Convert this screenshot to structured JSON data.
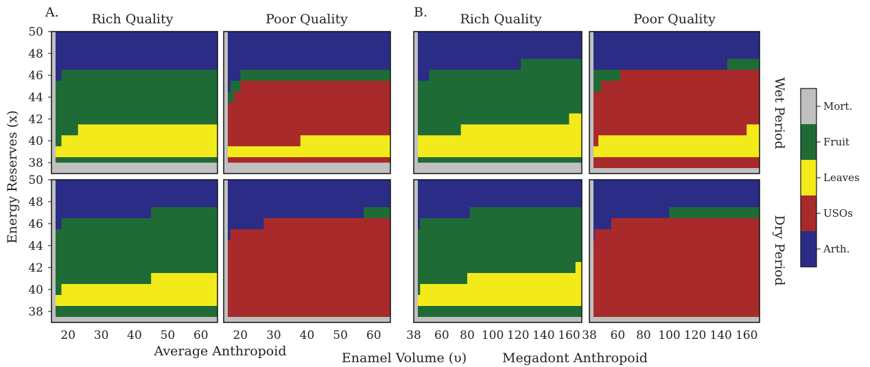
{
  "panel_labels": {
    "a": "A.",
    "b": "B."
  },
  "column_titles": [
    "Rich Quality",
    "Poor Quality",
    "Rich Quality",
    "Poor Quality"
  ],
  "row_titles": {
    "top": "Wet Period",
    "bottom": "Dry Period"
  },
  "axis_labels": {
    "y": "Energy Reserves (x)",
    "x_common": "Enamel Volume (υ)",
    "x_a": "Average Anthropoid",
    "x_b": "Megadont Anthropoid"
  },
  "y_ticks": [
    "50",
    "48",
    "46",
    "44",
    "42",
    "40",
    "38"
  ],
  "x_ticks_a": [
    "20",
    "30",
    "40",
    "50",
    "60"
  ],
  "x_ticks_b": [
    "38",
    "60",
    "80",
    "100",
    "120",
    "140",
    "160"
  ],
  "colors": {
    "Mort.": "#c0c0c0",
    "Fruit": "#1f6b36",
    "Leaves": "#f2ea1a",
    "USOs": "#a82a2a",
    "Arth.": "#2a2c86"
  },
  "legend": [
    "Mort.",
    "Fruit",
    "Leaves",
    "USOs",
    "Arth."
  ],
  "chart_data": [
    {
      "type": "heatmap",
      "group": "A. Average Anthropoid",
      "column": "Rich Quality",
      "row": "Wet Period",
      "xlim": [
        15,
        65
      ],
      "ylim": [
        37,
        50
      ],
      "bands": [
        {
          "category": "Mort.",
          "boundary": [
            [
              15,
              38
            ],
            [
              65,
              38
            ]
          ]
        },
        {
          "category": "Fruit",
          "boundary": [
            [
              15,
              38.5
            ],
            [
              65,
              38.5
            ]
          ]
        },
        {
          "category": "Leaves",
          "boundary": [
            [
              15,
              39.5
            ],
            [
              18,
              39.5
            ],
            [
              18,
              40.5
            ],
            [
              23,
              40.5
            ],
            [
              23,
              41.5
            ],
            [
              42,
              41.5
            ],
            [
              42,
              41.5
            ],
            [
              65,
              41.5
            ]
          ]
        },
        {
          "category": "Fruit",
          "boundary": [
            [
              15,
              44.5
            ],
            [
              16,
              44.5
            ],
            [
              16,
              45.5
            ],
            [
              18,
              45.5
            ],
            [
              18,
              46.5
            ],
            [
              32,
              46.5
            ],
            [
              32,
              46.5
            ],
            [
              65,
              46.5
            ]
          ]
        },
        {
          "category": "Arth.",
          "boundary": [
            [
              15,
              50
            ],
            [
              65,
              50
            ]
          ]
        }
      ]
    },
    {
      "type": "heatmap",
      "group": "A. Average Anthropoid",
      "column": "Poor Quality",
      "row": "Wet Period",
      "xlim": [
        15,
        65
      ],
      "ylim": [
        37,
        50
      ],
      "bands": [
        {
          "category": "Mort.",
          "boundary": [
            [
              15,
              38
            ],
            [
              65,
              38
            ]
          ]
        },
        {
          "category": "USOs",
          "boundary": [
            [
              15,
              38.5
            ],
            [
              65,
              38.5
            ]
          ]
        },
        {
          "category": "Leaves",
          "boundary": [
            [
              15,
              39.5
            ],
            [
              38,
              39.5
            ],
            [
              38,
              40.5
            ],
            [
              65,
              40.5
            ]
          ]
        },
        {
          "category": "USOs",
          "boundary": [
            [
              15,
              42.5
            ],
            [
              16,
              42.5
            ],
            [
              16,
              43.5
            ],
            [
              18,
              43.5
            ],
            [
              18,
              44.5
            ],
            [
              20,
              44.5
            ],
            [
              20,
              45.5
            ],
            [
              37,
              45.5
            ],
            [
              37,
              45.5
            ],
            [
              65,
              45.5
            ]
          ]
        },
        {
          "category": "Fruit",
          "boundary": [
            [
              15,
              44.5
            ],
            [
              17,
              44.5
            ],
            [
              17,
              45.5
            ],
            [
              20,
              45.5
            ],
            [
              20,
              46.5
            ],
            [
              37,
              46.5
            ],
            [
              37,
              46.5
            ],
            [
              65,
              46.5
            ]
          ]
        },
        {
          "category": "Arth.",
          "boundary": [
            [
              15,
              50
            ],
            [
              65,
              50
            ]
          ]
        }
      ]
    },
    {
      "type": "heatmap",
      "group": "B. Megadont Anthropoid",
      "column": "Rich Quality",
      "row": "Wet Period",
      "xlim": [
        38,
        170
      ],
      "ylim": [
        37,
        50
      ],
      "bands": [
        {
          "category": "Mort.",
          "boundary": [
            [
              38,
              38
            ],
            [
              170,
              38
            ]
          ]
        },
        {
          "category": "Fruit",
          "boundary": [
            [
              38,
              38.5
            ],
            [
              170,
              38.5
            ]
          ]
        },
        {
          "category": "Leaves",
          "boundary": [
            [
              38,
              39.5
            ],
            [
              40,
              39.5
            ],
            [
              40,
              40.5
            ],
            [
              75,
              40.5
            ],
            [
              75,
              41.5
            ],
            [
              160,
              41.5
            ],
            [
              160,
              42.5
            ],
            [
              170,
              42.5
            ]
          ]
        },
        {
          "category": "Fruit",
          "boundary": [
            [
              38,
              45.5
            ],
            [
              50,
              45.5
            ],
            [
              50,
              46.5
            ],
            [
              122,
              46.5
            ],
            [
              122,
              47.5
            ],
            [
              170,
              47.5
            ]
          ]
        },
        {
          "category": "Arth.",
          "boundary": [
            [
              38,
              50
            ],
            [
              170,
              50
            ]
          ]
        }
      ]
    },
    {
      "type": "heatmap",
      "group": "B. Megadont Anthropoid",
      "column": "Poor Quality",
      "row": "Wet Period",
      "xlim": [
        38,
        170
      ],
      "ylim": [
        37,
        50
      ],
      "bands": [
        {
          "category": "Mort.",
          "boundary": [
            [
              38,
              37.5
            ],
            [
              170,
              37.5
            ]
          ]
        },
        {
          "category": "USOs",
          "boundary": [
            [
              38,
              38.5
            ],
            [
              170,
              38.5
            ]
          ]
        },
        {
          "category": "Leaves",
          "boundary": [
            [
              38,
              39.5
            ],
            [
              45,
              39.5
            ],
            [
              45,
              40.5
            ],
            [
              70,
              40.5
            ],
            [
              70,
              40.5
            ],
            [
              160,
              40.5
            ],
            [
              160,
              41.5
            ],
            [
              170,
              41.5
            ]
          ]
        },
        {
          "category": "USOs",
          "boundary": [
            [
              38,
              44.5
            ],
            [
              47,
              44.5
            ],
            [
              47,
              45.5
            ],
            [
              62,
              45.5
            ],
            [
              62,
              46.5
            ],
            [
              170,
              46.5
            ]
          ]
        },
        {
          "category": "Fruit",
          "boundary": [
            [
              38,
              46.5
            ],
            [
              62,
              46.5
            ],
            [
              62,
              46.5
            ],
            [
              145,
              46.5
            ],
            [
              145,
              47.5
            ],
            [
              170,
              47.5
            ]
          ]
        },
        {
          "category": "Arth.",
          "boundary": [
            [
              38,
              50
            ],
            [
              170,
              50
            ]
          ]
        }
      ]
    },
    {
      "type": "heatmap",
      "group": "A. Average Anthropoid",
      "column": "Rich Quality",
      "row": "Dry Period",
      "xlim": [
        15,
        65
      ],
      "ylim": [
        37,
        50
      ],
      "bands": [
        {
          "category": "Mort.",
          "boundary": [
            [
              15,
              37.5
            ],
            [
              65,
              37.5
            ]
          ]
        },
        {
          "category": "Fruit",
          "boundary": [
            [
              15,
              38.5
            ],
            [
              65,
              38.5
            ]
          ]
        },
        {
          "category": "Leaves",
          "boundary": [
            [
              15,
              39.5
            ],
            [
              18,
              39.5
            ],
            [
              18,
              40.5
            ],
            [
              25,
              40.5
            ],
            [
              25,
              40.5
            ],
            [
              45,
              40.5
            ],
            [
              45,
              41.5
            ],
            [
              65,
              41.5
            ]
          ]
        },
        {
          "category": "Fruit",
          "boundary": [
            [
              15,
              44.5
            ],
            [
              16,
              44.5
            ],
            [
              16,
              45.5
            ],
            [
              18,
              45.5
            ],
            [
              18,
              46.5
            ],
            [
              45,
              46.5
            ],
            [
              45,
              47.5
            ],
            [
              65,
              47.5
            ]
          ]
        },
        {
          "category": "Arth.",
          "boundary": [
            [
              15,
              50
            ],
            [
              65,
              50
            ]
          ]
        }
      ]
    },
    {
      "type": "heatmap",
      "group": "A. Average Anthropoid",
      "column": "Poor Quality",
      "row": "Dry Period",
      "xlim": [
        15,
        65
      ],
      "ylim": [
        37,
        50
      ],
      "bands": [
        {
          "category": "Mort.",
          "boundary": [
            [
              15,
              37.5
            ],
            [
              65,
              37.5
            ]
          ]
        },
        {
          "category": "USOs",
          "boundary": [
            [
              15,
              44.5
            ],
            [
              17,
              44.5
            ],
            [
              17,
              45.5
            ],
            [
              27,
              45.5
            ],
            [
              27,
              46.5
            ],
            [
              56,
              46.5
            ],
            [
              56,
              46.5
            ],
            [
              65,
              46.5
            ]
          ]
        },
        {
          "category": "Fruit",
          "boundary": [
            [
              15,
              44.5
            ],
            [
              17,
              44.5
            ],
            [
              17,
              45.5
            ],
            [
              30,
              45.5
            ],
            [
              30,
              46.5
            ],
            [
              57,
              46.5
            ],
            [
              57,
              47.5
            ],
            [
              65,
              47.5
            ]
          ]
        },
        {
          "category": "Arth.",
          "boundary": [
            [
              15,
              50
            ],
            [
              65,
              50
            ]
          ]
        }
      ]
    },
    {
      "type": "heatmap",
      "group": "B. Megadont Anthropoid",
      "column": "Rich Quality",
      "row": "Dry Period",
      "xlim": [
        38,
        170
      ],
      "ylim": [
        37,
        50
      ],
      "bands": [
        {
          "category": "Mort.",
          "boundary": [
            [
              38,
              37.5
            ],
            [
              170,
              37.5
            ]
          ]
        },
        {
          "category": "Fruit",
          "boundary": [
            [
              38,
              38.5
            ],
            [
              170,
              38.5
            ]
          ]
        },
        {
          "category": "Leaves",
          "boundary": [
            [
              38,
              39.5
            ],
            [
              43,
              39.5
            ],
            [
              43,
              40.5
            ],
            [
              80,
              40.5
            ],
            [
              80,
              41.5
            ],
            [
              165,
              41.5
            ],
            [
              165,
              42.5
            ],
            [
              170,
              42.5
            ]
          ]
        },
        {
          "category": "Fruit",
          "boundary": [
            [
              38,
              45.5
            ],
            [
              43,
              45.5
            ],
            [
              43,
              46.5
            ],
            [
              82,
              46.5
            ],
            [
              82,
              47.5
            ],
            [
              170,
              47.5
            ]
          ]
        },
        {
          "category": "Arth.",
          "boundary": [
            [
              38,
              50
            ],
            [
              170,
              50
            ]
          ]
        }
      ]
    },
    {
      "type": "heatmap",
      "group": "B. Megadont Anthropoid",
      "column": "Poor Quality",
      "row": "Dry Period",
      "xlim": [
        38,
        170
      ],
      "ylim": [
        37,
        50
      ],
      "bands": [
        {
          "category": "Mort.",
          "boundary": [
            [
              38,
              37.5
            ],
            [
              170,
              37.5
            ]
          ]
        },
        {
          "category": "USOs",
          "boundary": [
            [
              38,
              44.5
            ],
            [
              42,
              44.5
            ],
            [
              42,
              45.5
            ],
            [
              55,
              45.5
            ],
            [
              55,
              46.5
            ],
            [
              170,
              46.5
            ]
          ]
        },
        {
          "category": "Fruit",
          "boundary": [
            [
              38,
              44.5
            ],
            [
              42,
              44.5
            ],
            [
              42,
              45.5
            ],
            [
              55,
              45.5
            ],
            [
              55,
              46.5
            ],
            [
              100,
              46.5
            ],
            [
              100,
              47.5
            ],
            [
              170,
              47.5
            ]
          ]
        },
        {
          "category": "Arth.",
          "boundary": [
            [
              38,
              50
            ],
            [
              170,
              50
            ]
          ]
        }
      ]
    }
  ]
}
